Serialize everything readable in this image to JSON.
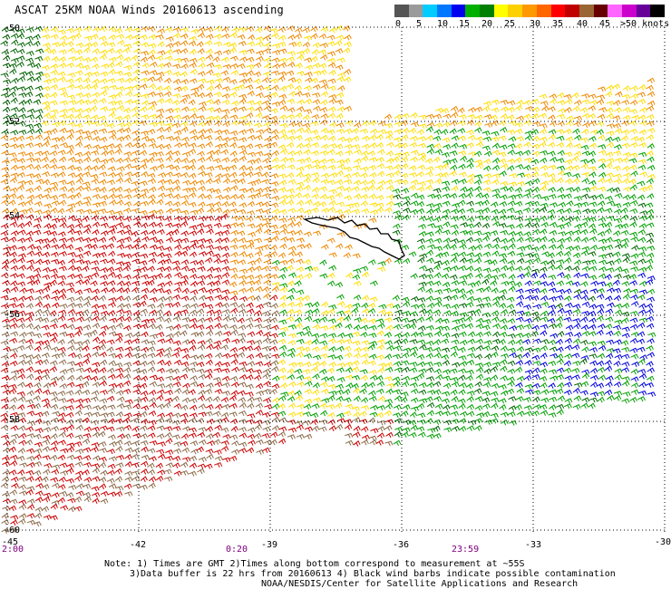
{
  "title": "ASCAT 25KM NOAA Winds 20160613 ascending",
  "colorbar": {
    "unit_label": ">50 knots",
    "ticks": [
      "0",
      "5",
      "10",
      "15",
      "20",
      "25",
      "30",
      "35",
      "40",
      "45"
    ],
    "colors": [
      "#555555",
      "#9a9a9a",
      "#00ccff",
      "#0077ff",
      "#0000ee",
      "#00b000",
      "#008000",
      "#ffff00",
      "#ffd000",
      "#ff9900",
      "#ff6600",
      "#ff0000",
      "#c00000",
      "#996633",
      "#660000",
      "#ff66ff",
      "#cc00cc",
      "#660099",
      "#000000"
    ]
  },
  "axes": {
    "lon_labels": [
      "-45",
      "-42",
      "-39",
      "-36",
      "-33",
      "-30"
    ],
    "lat_labels": [
      "-50",
      "-52",
      "-54",
      "-56",
      "-58",
      "-60"
    ]
  },
  "times": [
    "2:00",
    "0:20",
    "23:59"
  ],
  "notes": {
    "line1": "Note: 1) Times are GMT 2)Times along bottom correspond to measurement at ~55S",
    "line2": "3)Data buffer is 22 hrs from 20160613 4) Black wind barbs indicate possible contamination",
    "line3": "NOAA/NESDIS/Center for Satellite Applications and Research"
  },
  "legend_colors": {
    "green": "#00a000",
    "dark_green": "#006400",
    "blue": "#0000dd",
    "yellow": "#ffdd00",
    "orange": "#ee8800",
    "red": "#cc0000",
    "brown": "#8b6b4a",
    "magenta": "#dd44dd",
    "land": "#000000"
  }
}
